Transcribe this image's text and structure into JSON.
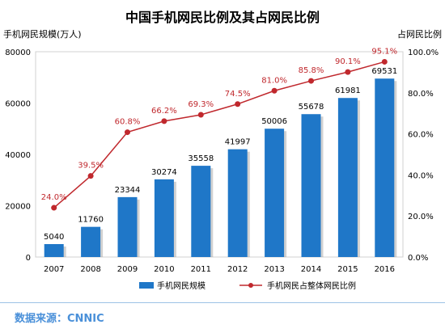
{
  "chart_data": {
    "type": "bar+line",
    "title": "中国手机网民比例及其占网民比例",
    "ylabel_left": "手机网民规模(万人)",
    "ylabel_right": "占网民比例",
    "categories": [
      "2007",
      "2008",
      "2009",
      "2010",
      "2011",
      "2012",
      "2013",
      "2014",
      "2015",
      "2016"
    ],
    "left_axis": {
      "ylim": [
        0,
        80000
      ],
      "ticks": [
        "0",
        "20000",
        "40000",
        "60000",
        "80000"
      ],
      "tick_values": [
        0,
        20000,
        40000,
        60000,
        80000
      ]
    },
    "right_axis": {
      "ylim": [
        0,
        100
      ],
      "ticks": [
        "0.0%",
        "20.0%",
        "40.0%",
        "60.0%",
        "80.0%",
        "100.0%"
      ],
      "tick_values": [
        0,
        20,
        40,
        60,
        80,
        100
      ]
    },
    "series": [
      {
        "name": "手机网民规模",
        "type": "bar",
        "axis": "left",
        "color": "#1f77c8",
        "values": [
          5040,
          11760,
          23344,
          30274,
          35558,
          41997,
          50006,
          55678,
          61981,
          69531
        ],
        "labels": [
          "5040",
          "11760",
          "23344",
          "30274",
          "35558",
          "41997",
          "50006",
          "55678",
          "61981",
          "69531"
        ]
      },
      {
        "name": "手机网民占整体网民比例",
        "type": "line",
        "axis": "right",
        "color": "#c0282d",
        "values": [
          24.0,
          39.5,
          60.8,
          66.2,
          69.3,
          74.5,
          81.0,
          85.8,
          90.1,
          95.1
        ],
        "labels": [
          "24.0%",
          "39.5%",
          "60.8%",
          "66.2%",
          "69.3%",
          "74.5%",
          "81.0%",
          "85.8%",
          "90.1%",
          "95.1%"
        ]
      }
    ],
    "grid": false,
    "legend": "bottom"
  },
  "source": {
    "text": "数据来源：CNNIC"
  }
}
